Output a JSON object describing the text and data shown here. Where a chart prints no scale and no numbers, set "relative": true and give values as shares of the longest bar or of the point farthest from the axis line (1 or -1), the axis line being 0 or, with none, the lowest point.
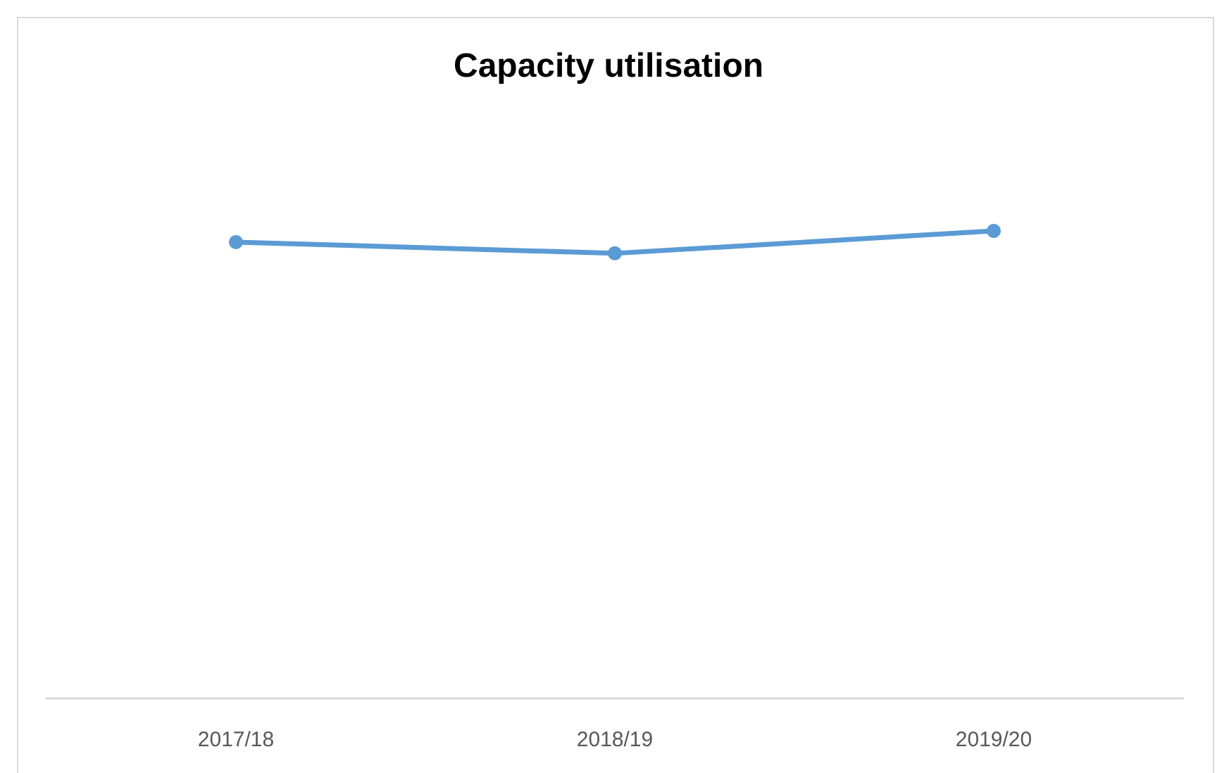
{
  "chart_data": {
    "type": "line",
    "title": "Capacity utilisation",
    "relative": true,
    "categories": [
      "2017/18",
      "2018/19",
      "2019/20"
    ],
    "series": [
      {
        "color": "#5b9bd5",
        "values": [
          0.976,
          0.952,
          1
        ]
      }
    ],
    "marker": "circle",
    "line_style": "solid"
  }
}
